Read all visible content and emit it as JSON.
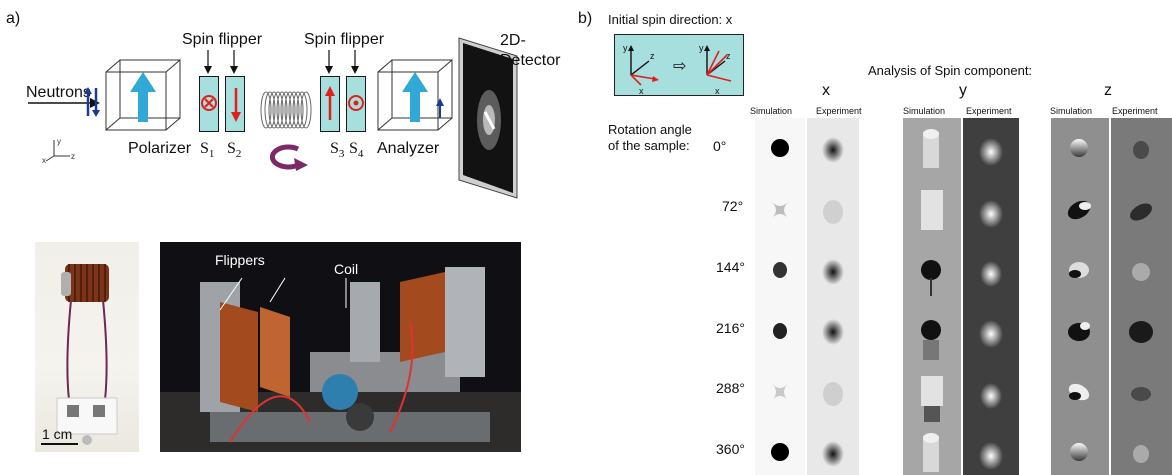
{
  "panel_a": {
    "label": "a)",
    "neutrons": "Neutrons",
    "spin_flipper_1": "Spin flipper",
    "spin_flipper_2": "Spin flipper",
    "polarizer": "Polarizer",
    "s1": "S",
    "s1_sub": "1",
    "s2": "S",
    "s2_sub": "2",
    "s3": "S",
    "s3_sub": "3",
    "s4": "S",
    "s4_sub": "4",
    "analyzer": "Analyzer",
    "detector_line1": "2D-",
    "detector_line2": "Detector",
    "photo_flippers": "Flippers",
    "photo_coil": "Coil",
    "scale_bar": "1 cm"
  },
  "panel_b": {
    "label": "b)",
    "initial_spin": "Initial spin direction: x",
    "analysis_title": "Analysis of Spin component:",
    "components": [
      "x",
      "y",
      "z"
    ],
    "col_simulation": "Simulation",
    "col_experiment": "Experiment",
    "rotation_line1": "Rotation angle",
    "rotation_line2": "of the sample:",
    "angles": [
      "0°",
      "72°",
      "144°",
      "216°",
      "288°",
      "360°"
    ]
  },
  "colors": {
    "flipper_fill": "#a7dede",
    "arrow_red": "#e0201b",
    "arrow_blue": "#1f7fbf",
    "arrow_cyan": "#30a9d6",
    "dark_blue": "#1b3b91",
    "coil_purple": "#7b2a67"
  }
}
